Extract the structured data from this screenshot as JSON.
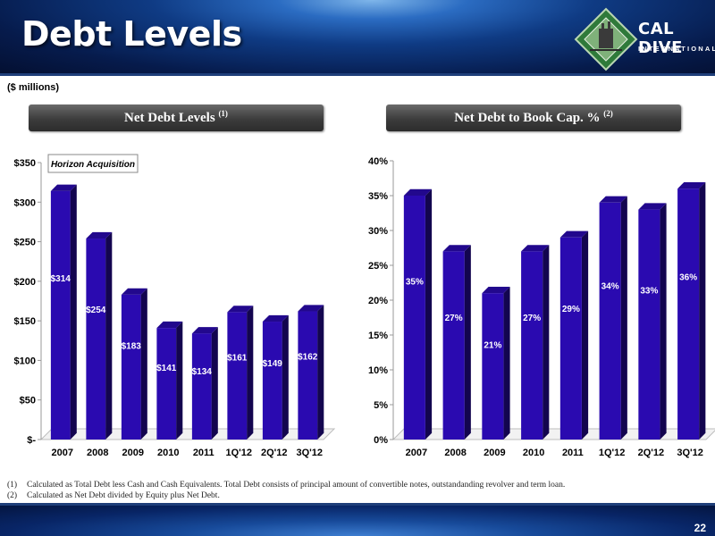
{
  "header": {
    "title": "Debt Levels",
    "logo": {
      "name": "CAL DIVE",
      "subtitle": "INTERNATIONAL"
    }
  },
  "units_label": "($ millions)",
  "panels": {
    "left": {
      "title": "Net Debt Levels",
      "note": "(1)"
    },
    "right": {
      "title": "Net Debt to Book Cap. %",
      "note": "(2)"
    }
  },
  "chart_data": [
    {
      "type": "bar",
      "categories": [
        "2007",
        "2008",
        "2009",
        "2010",
        "2011",
        "1Q'12",
        "2Q'12",
        "3Q'12"
      ],
      "values": [
        314,
        254,
        183,
        141,
        134,
        161,
        149,
        162
      ],
      "data_labels": [
        "$314",
        "$254",
        "$183",
        "$141",
        "$134",
        "$161",
        "$149",
        "$162"
      ],
      "ylim": [
        0,
        350
      ],
      "yticks": [
        0,
        50,
        100,
        150,
        200,
        250,
        300,
        350
      ],
      "ytick_labels": [
        "$-",
        "$50",
        "$100",
        "$150",
        "$200",
        "$250",
        "$300",
        "$350"
      ],
      "annotation": "Horizon Acquisition",
      "bar_color": "#2a0ab0",
      "grid": false
    },
    {
      "type": "bar",
      "categories": [
        "2007",
        "2008",
        "2009",
        "2010",
        "2011",
        "1Q'12",
        "2Q'12",
        "3Q'12"
      ],
      "values": [
        35,
        27,
        21,
        27,
        29,
        34,
        33,
        36
      ],
      "data_labels": [
        "35%",
        "27%",
        "21%",
        "27%",
        "29%",
        "34%",
        "33%",
        "36%"
      ],
      "ylim": [
        0,
        40
      ],
      "yticks": [
        0,
        5,
        10,
        15,
        20,
        25,
        30,
        35,
        40
      ],
      "ytick_labels": [
        "0%",
        "5%",
        "10%",
        "15%",
        "20%",
        "25%",
        "30%",
        "35%",
        "40%"
      ],
      "bar_color": "#2a0ab0",
      "grid": false
    }
  ],
  "footnotes": [
    {
      "mark": "(1)",
      "text": "Calculated as Total Debt less Cash and Cash Equivalents. Total Debt consists of principal amount of convertible notes, outstandanding revolver and term loan."
    },
    {
      "mark": "(2)",
      "text": "Calculated as Net Debt divided by Equity plus Net Debt."
    }
  ],
  "page_number": "22"
}
